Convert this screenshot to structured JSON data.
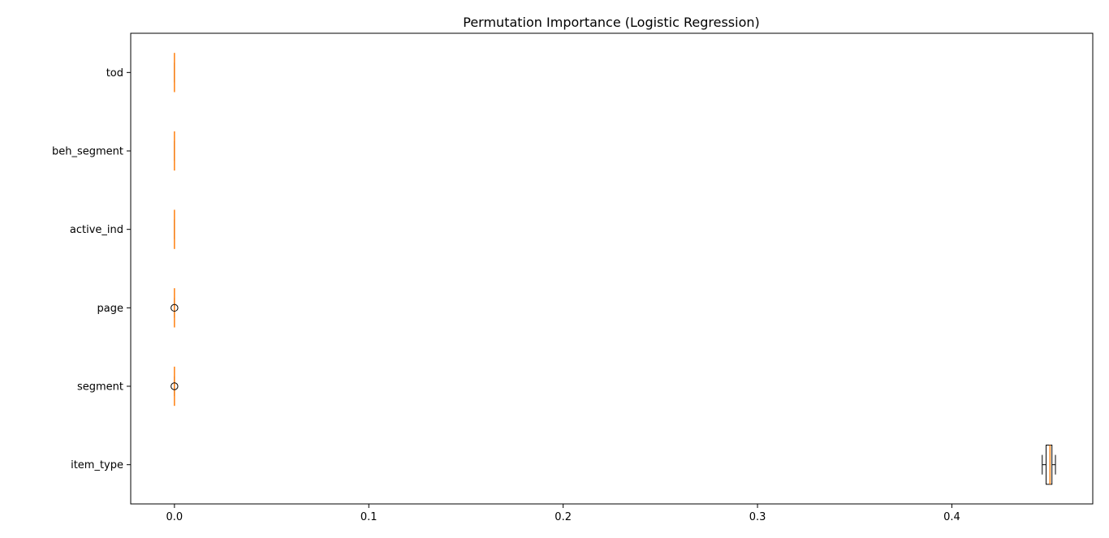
{
  "chart_data": {
    "type": "boxplot",
    "orientation": "horizontal",
    "title": "Permutation Importance (Logistic Regression)",
    "xlabel": "",
    "ylabel": "",
    "xlim": [
      -0.0225,
      0.4725
    ],
    "xticks": [
      0.0,
      0.1,
      0.2,
      0.3,
      0.4
    ],
    "xtick_labels": [
      "0.0",
      "0.1",
      "0.2",
      "0.3",
      "0.4"
    ],
    "categories": [
      "item_type",
      "segment",
      "page",
      "active_ind",
      "beh_segment",
      "tod"
    ],
    "boxes": [
      {
        "label": "item_type",
        "whisker_low": 0.4465,
        "q1": 0.4485,
        "median": 0.4505,
        "q3": 0.4515,
        "whisker_high": 0.4533,
        "outliers": []
      },
      {
        "label": "segment",
        "whisker_low": 0.0,
        "q1": 0.0,
        "median": 0.0,
        "q3": 0.0,
        "whisker_high": 0.0,
        "outliers": [
          0.0
        ]
      },
      {
        "label": "page",
        "whisker_low": 0.0,
        "q1": 0.0,
        "median": 0.0,
        "q3": 0.0,
        "whisker_high": 0.0,
        "outliers": [
          0.0
        ]
      },
      {
        "label": "active_ind",
        "whisker_low": 0.0,
        "q1": 0.0,
        "median": 0.0,
        "q3": 0.0,
        "whisker_high": 0.0,
        "outliers": []
      },
      {
        "label": "beh_segment",
        "whisker_low": 0.0,
        "q1": 0.0,
        "median": 0.0,
        "q3": 0.0,
        "whisker_high": 0.0,
        "outliers": []
      },
      {
        "label": "tod",
        "whisker_low": 0.0,
        "q1": 0.0,
        "median": 0.0,
        "q3": 0.0,
        "whisker_high": 0.0,
        "outliers": []
      }
    ],
    "colors": {
      "box_edge": "#000000",
      "box_fill": "#ffffff",
      "median": "#ff7f0e",
      "frame": "#000000"
    },
    "grid": false,
    "legend": "none"
  }
}
